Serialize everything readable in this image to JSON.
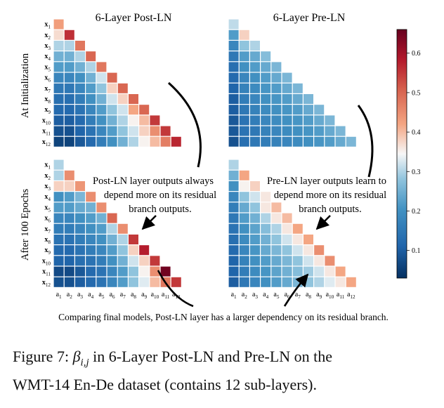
{
  "figure": {
    "panel_titles": [
      "6-Layer Post-LN",
      "6-Layer Pre-LN"
    ],
    "row_labels": [
      "At Initialization",
      "After 100 Epochs"
    ],
    "y_tick_labels": [
      "x1",
      "x2",
      "x3",
      "x4",
      "x5",
      "x6",
      "x7",
      "x8",
      "x9",
      "x10",
      "x11",
      "x12"
    ],
    "x_tick_labels": [
      "a1",
      "a2",
      "a3",
      "a4",
      "a5",
      "a6",
      "a7",
      "a8",
      "a9",
      "a10",
      "a11",
      "a12"
    ],
    "colorbar": {
      "ticks": [
        {
          "value": 0.1,
          "label": "0.1"
        },
        {
          "value": 0.2,
          "label": "0.2"
        },
        {
          "value": 0.3,
          "label": "0.3"
        },
        {
          "value": 0.4,
          "label": "0.4"
        },
        {
          "value": 0.5,
          "label": "0.5"
        },
        {
          "value": 0.6,
          "label": "0.6"
        }
      ],
      "min": 0.03,
      "max": 0.66
    },
    "annotations": {
      "post_ln": [
        "Post-LN layer outputs always",
        "depend more on its residual",
        "branch outputs."
      ],
      "pre_ln": [
        "Pre-LN layer outputs learn to",
        "depend more on its residual",
        "branch outputs."
      ],
      "comparison": "Comparing final models, Post-LN layer has a larger dependency on its residual branch."
    }
  },
  "caption": {
    "prefix": "Figure 7: ",
    "symbol": "β",
    "subscript": "i,j",
    "rest_line1": " in 6-Layer Post-LN and Pre-LN on the",
    "line2": "WMT-14 En-De dataset (contains 12 sub-layers)."
  },
  "chart_data": {
    "type": "heatmap",
    "description_rows": "x1..x12 (lower-triangular, row i has columns a1..ai)",
    "color_range": [
      0.03,
      0.66
    ],
    "panels": [
      {
        "name": "post_init",
        "values": [
          [
            0.43
          ],
          [
            0.37,
            0.56
          ],
          [
            0.3,
            0.3,
            0.48
          ],
          [
            0.25,
            0.25,
            0.3,
            0.5
          ],
          [
            0.22,
            0.22,
            0.25,
            0.3,
            0.48
          ],
          [
            0.18,
            0.18,
            0.2,
            0.25,
            0.32,
            0.5
          ],
          [
            0.15,
            0.15,
            0.18,
            0.22,
            0.28,
            0.38,
            0.5
          ],
          [
            0.13,
            0.13,
            0.16,
            0.2,
            0.25,
            0.32,
            0.38,
            0.5
          ],
          [
            0.12,
            0.12,
            0.14,
            0.18,
            0.22,
            0.28,
            0.32,
            0.42,
            0.5
          ],
          [
            0.1,
            0.1,
            0.12,
            0.16,
            0.2,
            0.25,
            0.3,
            0.35,
            0.4,
            0.55
          ],
          [
            0.08,
            0.08,
            0.11,
            0.14,
            0.18,
            0.22,
            0.28,
            0.32,
            0.38,
            0.45,
            0.55
          ],
          [
            0.06,
            0.06,
            0.09,
            0.12,
            0.16,
            0.2,
            0.25,
            0.3,
            0.35,
            0.4,
            0.47,
            0.57
          ]
        ]
      },
      {
        "name": "pre_init",
        "values": [
          [
            0.31
          ],
          [
            0.22,
            0.38
          ],
          [
            0.18,
            0.28,
            0.3
          ],
          [
            0.15,
            0.22,
            0.24,
            0.27
          ],
          [
            0.13,
            0.2,
            0.22,
            0.24,
            0.26
          ],
          [
            0.12,
            0.18,
            0.2,
            0.22,
            0.24,
            0.26
          ],
          [
            0.11,
            0.17,
            0.19,
            0.21,
            0.22,
            0.24,
            0.26
          ],
          [
            0.1,
            0.16,
            0.18,
            0.2,
            0.21,
            0.22,
            0.24,
            0.26
          ],
          [
            0.1,
            0.15,
            0.17,
            0.19,
            0.2,
            0.21,
            0.22,
            0.24,
            0.26
          ],
          [
            0.09,
            0.14,
            0.16,
            0.18,
            0.19,
            0.2,
            0.21,
            0.22,
            0.24,
            0.26
          ],
          [
            0.09,
            0.14,
            0.15,
            0.17,
            0.18,
            0.19,
            0.2,
            0.21,
            0.22,
            0.24,
            0.26
          ],
          [
            0.08,
            0.13,
            0.15,
            0.16,
            0.17,
            0.18,
            0.19,
            0.2,
            0.21,
            0.22,
            0.24,
            0.26
          ]
        ]
      },
      {
        "name": "post_epoch100",
        "values": [
          [
            0.3
          ],
          [
            0.3,
            0.45
          ],
          [
            0.38,
            0.38,
            0.44
          ],
          [
            0.2,
            0.22,
            0.26,
            0.45
          ],
          [
            0.22,
            0.22,
            0.24,
            0.25,
            0.45
          ],
          [
            0.18,
            0.18,
            0.2,
            0.22,
            0.25,
            0.5
          ],
          [
            0.16,
            0.16,
            0.18,
            0.2,
            0.22,
            0.3,
            0.45
          ],
          [
            0.14,
            0.14,
            0.16,
            0.18,
            0.2,
            0.25,
            0.3,
            0.55
          ],
          [
            0.12,
            0.12,
            0.14,
            0.16,
            0.18,
            0.22,
            0.28,
            0.38,
            0.58
          ],
          [
            0.11,
            0.11,
            0.13,
            0.14,
            0.16,
            0.2,
            0.25,
            0.32,
            0.38,
            0.55
          ],
          [
            0.07,
            0.07,
            0.09,
            0.12,
            0.14,
            0.18,
            0.22,
            0.28,
            0.35,
            0.45,
            0.65
          ],
          [
            0.08,
            0.08,
            0.1,
            0.12,
            0.14,
            0.18,
            0.22,
            0.28,
            0.33,
            0.4,
            0.48,
            0.55
          ]
        ]
      },
      {
        "name": "pre_epoch100",
        "values": [
          [
            0.3
          ],
          [
            0.25,
            0.42
          ],
          [
            0.2,
            0.35,
            0.38
          ],
          [
            0.18,
            0.28,
            0.32,
            0.36
          ],
          [
            0.16,
            0.24,
            0.28,
            0.36,
            0.4
          ],
          [
            0.15,
            0.22,
            0.25,
            0.3,
            0.36,
            0.4
          ],
          [
            0.14,
            0.2,
            0.23,
            0.27,
            0.3,
            0.36,
            0.42
          ],
          [
            0.13,
            0.19,
            0.22,
            0.25,
            0.28,
            0.32,
            0.36,
            0.42
          ],
          [
            0.12,
            0.18,
            0.21,
            0.24,
            0.26,
            0.28,
            0.32,
            0.36,
            0.45
          ],
          [
            0.11,
            0.17,
            0.2,
            0.22,
            0.24,
            0.26,
            0.28,
            0.32,
            0.36,
            0.45
          ],
          [
            0.11,
            0.16,
            0.19,
            0.21,
            0.23,
            0.25,
            0.27,
            0.29,
            0.32,
            0.36,
            0.42
          ],
          [
            0.1,
            0.15,
            0.18,
            0.2,
            0.22,
            0.24,
            0.26,
            0.28,
            0.3,
            0.33,
            0.36,
            0.42
          ]
        ]
      }
    ]
  }
}
